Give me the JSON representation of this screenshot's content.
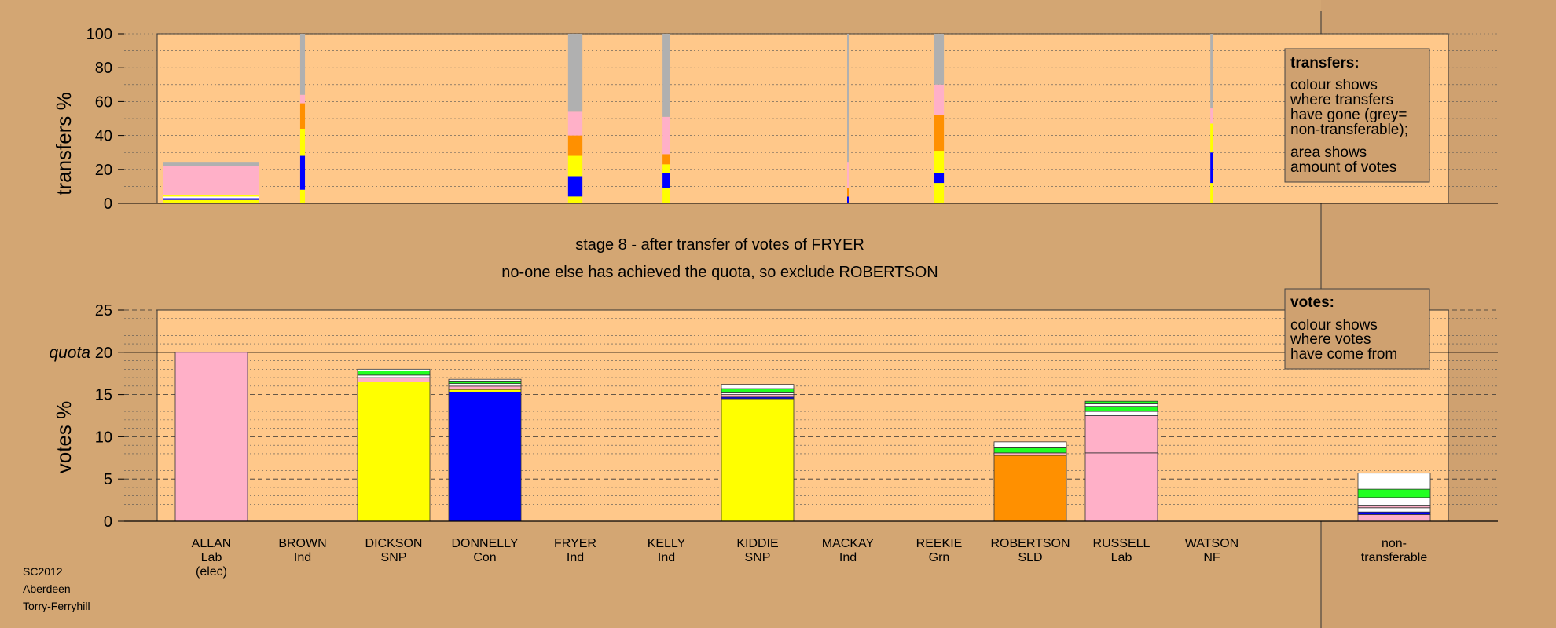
{
  "stage_title": "stage 8 - after transfer of votes of FRYER",
  "stage_subtitle": "no-one else has achieved the quota, so exclude ROBERTSON",
  "footer": {
    "line1": "SC2012",
    "line2": "Aberdeen",
    "line3": "Torry-Ferryhill"
  },
  "colors": {
    "background": "#d3a673",
    "plot_bg": "#ffc88a",
    "right_panel": "#cfa170",
    "Lab": "#ffb0c8",
    "SNP": "#ffff00",
    "Con": "#0000ff",
    "SLD": "#ff9000",
    "Grn": "#22ff22",
    "Ind": "#ffffff",
    "NF": "#ffffff",
    "nontransferable": "#b0b0b0"
  },
  "legends": {
    "transfers": {
      "title": "transfers:",
      "lines": [
        "colour shows",
        "where transfers",
        "have gone (grey=",
        "non-transferable);",
        "area shows",
        "amount of votes"
      ]
    },
    "votes": {
      "title": "votes:",
      "lines": [
        "colour shows",
        "where votes",
        "have come from"
      ]
    }
  },
  "chart_data": [
    {
      "type": "bar",
      "subtype": "stacked-transfers",
      "ylabel": "transfers %",
      "ylim": [
        0,
        100
      ],
      "yticks": [
        0,
        20,
        40,
        60,
        80,
        100
      ],
      "grid": true,
      "legend_position": "top-right",
      "categories": [
        "ALLAN",
        "BROWN",
        "DICKSON",
        "DONNELLY",
        "FRYER",
        "KELLY",
        "KIDDIE",
        "MACKAY",
        "REEKIE",
        "ROBERTSON",
        "RUSSELL",
        "WATSON"
      ],
      "transfers": [
        {
          "candidate": "ALLAN",
          "width_share": 1.0,
          "segments": [
            {
              "party": "SNP",
              "to": 2
            },
            {
              "party": "Con",
              "to": 3
            },
            {
              "party": "Ind",
              "to": 4
            },
            {
              "party": "SNP",
              "to": 5
            },
            {
              "party": "Lab",
              "to": 22
            },
            {
              "party": "nontransferable",
              "to": 24
            }
          ]
        },
        {
          "candidate": "BROWN",
          "width_share": 0.05,
          "segments": [
            {
              "party": "SNP",
              "to": 8
            },
            {
              "party": "Con",
              "to": 28
            },
            {
              "party": "SNP",
              "to": 44
            },
            {
              "party": "SLD",
              "to": 59
            },
            {
              "party": "Lab",
              "to": 64
            },
            {
              "party": "nontransferable",
              "to": 100
            }
          ]
        },
        {
          "candidate": "FRYER",
          "width_share": 0.15,
          "segments": [
            {
              "party": "SNP",
              "to": 4
            },
            {
              "party": "Con",
              "to": 16
            },
            {
              "party": "SNP",
              "to": 28
            },
            {
              "party": "SLD",
              "to": 40
            },
            {
              "party": "Lab",
              "to": 54
            },
            {
              "party": "nontransferable",
              "to": 100
            }
          ]
        },
        {
          "candidate": "KELLY",
          "width_share": 0.08,
          "segments": [
            {
              "party": "SNP",
              "to": 9
            },
            {
              "party": "Con",
              "to": 18
            },
            {
              "party": "SNP",
              "to": 23
            },
            {
              "party": "SLD",
              "to": 29
            },
            {
              "party": "Lab",
              "to": 51
            },
            {
              "party": "nontransferable",
              "to": 100
            }
          ]
        },
        {
          "candidate": "MACKAY",
          "width_share": 0.015,
          "segments": [
            {
              "party": "Con",
              "to": 4
            },
            {
              "party": "SLD",
              "to": 9
            },
            {
              "party": "Lab",
              "to": 24
            },
            {
              "party": "nontransferable",
              "to": 100
            }
          ]
        },
        {
          "candidate": "REEKIE",
          "width_share": 0.1,
          "segments": [
            {
              "party": "SNP",
              "to": 12
            },
            {
              "party": "Con",
              "to": 18
            },
            {
              "party": "SNP",
              "to": 31
            },
            {
              "party": "SLD",
              "to": 52
            },
            {
              "party": "Lab",
              "to": 70
            },
            {
              "party": "nontransferable",
              "to": 100
            }
          ]
        },
        {
          "candidate": "WATSON",
          "width_share": 0.03,
          "segments": [
            {
              "party": "SNP",
              "to": 12
            },
            {
              "party": "Con",
              "to": 30
            },
            {
              "party": "SNP",
              "to": 47
            },
            {
              "party": "Lab",
              "to": 56
            },
            {
              "party": "nontransferable",
              "to": 100
            }
          ]
        }
      ]
    },
    {
      "type": "bar",
      "subtype": "stacked-votes",
      "ylabel": "votes %",
      "ylim": [
        0,
        25
      ],
      "yticks": [
        0,
        5,
        10,
        15,
        20,
        25
      ],
      "quota": 20,
      "quota_label": "quota",
      "grid": true,
      "legend_position": "top-right",
      "categories": [
        {
          "name": "ALLAN",
          "party": "Lab",
          "note": "(elec)"
        },
        {
          "name": "BROWN",
          "party": "Ind"
        },
        {
          "name": "DICKSON",
          "party": "SNP"
        },
        {
          "name": "DONNELLY",
          "party": "Con"
        },
        {
          "name": "FRYER",
          "party": "Ind"
        },
        {
          "name": "KELLY",
          "party": "Ind"
        },
        {
          "name": "KIDDIE",
          "party": "SNP"
        },
        {
          "name": "MACKAY",
          "party": "Ind"
        },
        {
          "name": "REEKIE",
          "party": "Grn"
        },
        {
          "name": "ROBERTSON",
          "party": "SLD"
        },
        {
          "name": "RUSSELL",
          "party": "Lab"
        },
        {
          "name": "WATSON",
          "party": "NF"
        }
      ],
      "nontransferable_label": [
        "non-",
        "transferable"
      ],
      "stacks": [
        [
          {
            "party": "Lab",
            "value": 20.0
          }
        ],
        [],
        [
          {
            "party": "SNP",
            "value": 16.5
          },
          {
            "party": "Lab",
            "value": 0.5
          },
          {
            "party": "Ind",
            "value": 0.3
          },
          {
            "party": "Grn",
            "value": 0.5
          },
          {
            "party": "Ind",
            "value": 0.2
          }
        ],
        [
          {
            "party": "Con",
            "value": 15.3
          },
          {
            "party": "SNP",
            "value": 0.3
          },
          {
            "party": "Lab",
            "value": 0.4
          },
          {
            "party": "Ind",
            "value": 0.3
          },
          {
            "party": "Grn",
            "value": 0.3
          },
          {
            "party": "Ind",
            "value": 0.2
          }
        ],
        [],
        [],
        [
          {
            "party": "SNP",
            "value": 14.5
          },
          {
            "party": "Con",
            "value": 0.2
          },
          {
            "party": "Lab",
            "value": 0.3
          },
          {
            "party": "Ind",
            "value": 0.2
          },
          {
            "party": "Grn",
            "value": 0.5
          },
          {
            "party": "Ind",
            "value": 0.5
          }
        ],
        [],
        [],
        [
          {
            "party": "SLD",
            "value": 7.8
          },
          {
            "party": "Lab",
            "value": 0.3
          },
          {
            "party": "Grn",
            "value": 0.6
          },
          {
            "party": "Ind",
            "value": 0.7
          }
        ],
        [
          {
            "party": "Lab",
            "value": 8.1
          },
          {
            "party": "Lab",
            "value": 4.4
          },
          {
            "party": "Ind",
            "value": 0.5
          },
          {
            "party": "Grn",
            "value": 0.6
          },
          {
            "party": "Ind",
            "value": 0.3
          },
          {
            "party": "Grn",
            "value": 0.3
          }
        ],
        []
      ],
      "nontransferable": [
        {
          "party": "Lab",
          "value": 0.8
        },
        {
          "party": "Con",
          "value": 0.3
        },
        {
          "party": "Ind",
          "value": 0.5
        },
        {
          "party": "Lab",
          "value": 0.3
        },
        {
          "party": "Ind",
          "value": 0.9
        },
        {
          "party": "Grn",
          "value": 1.0
        },
        {
          "party": "Ind",
          "value": 1.9
        }
      ]
    }
  ]
}
